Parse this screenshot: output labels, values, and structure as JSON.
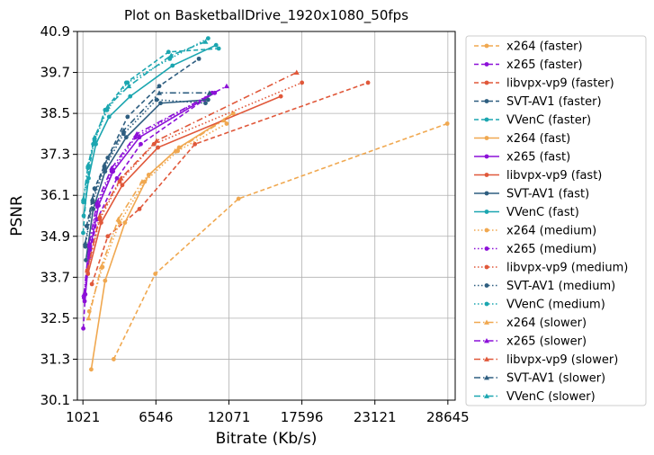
{
  "chart_data": {
    "type": "line",
    "title": "Plot on BasketballDrive_1920x1080_50fps",
    "xlabel": "Bitrate (Kb/s)",
    "ylabel": "PSNR",
    "xlim": [
      600,
      29200
    ],
    "ylim": [
      30.1,
      40.9
    ],
    "xticks": [
      1021,
      6546,
      12071,
      17596,
      23121,
      28645
    ],
    "xtick_labels": [
      "1021",
      "6546",
      "12071",
      "17596",
      "23121",
      "28645"
    ],
    "yticks": [
      30.1,
      31.3,
      32.5,
      33.7,
      34.9,
      36.1,
      37.3,
      38.5,
      39.7,
      40.9
    ],
    "ytick_labels": [
      "30.1",
      "31.3",
      "32.5",
      "33.7",
      "34.9",
      "36.1",
      "37.3",
      "38.5",
      "39.7",
      "40.9"
    ],
    "grid": true,
    "legend_position": "outside-right",
    "series": [
      {
        "name": "x264 (faster)",
        "color": "#f0a850",
        "dash": "dashed",
        "marker": "circle",
        "points": [
          [
            3350,
            31.3
          ],
          [
            6500,
            33.8
          ],
          [
            12800,
            36.0
          ],
          [
            28600,
            38.2
          ]
        ]
      },
      {
        "name": "x265 (faster)",
        "color": "#8c10d8",
        "dash": "dashed",
        "marker": "circle",
        "points": [
          [
            1050,
            32.2
          ],
          [
            1200,
            33.2
          ],
          [
            1500,
            34.3
          ],
          [
            2100,
            35.4
          ],
          [
            3600,
            36.6
          ],
          [
            5400,
            37.6
          ],
          [
            10200,
            38.9
          ]
        ]
      },
      {
        "name": "libvpx-vp9 (faster)",
        "color": "#e0583a",
        "dash": "dashed",
        "marker": "circle",
        "points": [
          [
            1700,
            33.5
          ],
          [
            2900,
            34.9
          ],
          [
            5300,
            35.7
          ],
          [
            9500,
            37.6
          ],
          [
            22600,
            39.4
          ]
        ]
      },
      {
        "name": "SVT-AV1 (faster)",
        "color": "#2e5e80",
        "dash": "dashed",
        "marker": "circle",
        "points": [
          [
            1300,
            35.2
          ],
          [
            1900,
            36.3
          ],
          [
            2900,
            37.2
          ],
          [
            4400,
            38.4
          ],
          [
            6800,
            39.3
          ],
          [
            9800,
            40.1
          ]
        ]
      },
      {
        "name": "VVenC (faster)",
        "color": "#1ba6b0",
        "dash": "dashed",
        "marker": "circle",
        "points": [
          [
            1040,
            35.0
          ],
          [
            1350,
            36.5
          ],
          [
            1800,
            37.6
          ],
          [
            2700,
            38.6
          ],
          [
            4300,
            39.4
          ],
          [
            7500,
            40.3
          ],
          [
            11300,
            40.4
          ]
        ]
      },
      {
        "name": "x264 (fast)",
        "color": "#f0a850",
        "dash": "solid",
        "marker": "circle",
        "points": [
          [
            1650,
            31.0
          ],
          [
            2700,
            33.6
          ],
          [
            4200,
            35.3
          ],
          [
            6000,
            36.7
          ],
          [
            8300,
            37.5
          ],
          [
            12400,
            38.5
          ]
        ]
      },
      {
        "name": "x265 (fast)",
        "color": "#8c10d8",
        "dash": "solid",
        "marker": "circle",
        "points": [
          [
            1150,
            33.0
          ],
          [
            1550,
            34.5
          ],
          [
            2200,
            35.8
          ],
          [
            3300,
            36.8
          ],
          [
            5300,
            37.8
          ],
          [
            11000,
            39.1
          ]
        ]
      },
      {
        "name": "libvpx-vp9 (fast)",
        "color": "#e0583a",
        "dash": "solid",
        "marker": "circle",
        "points": [
          [
            1400,
            33.8
          ],
          [
            2400,
            35.3
          ],
          [
            4000,
            36.4
          ],
          [
            6700,
            37.5
          ],
          [
            16000,
            39.0
          ]
        ]
      },
      {
        "name": "SVT-AV1 (fast)",
        "color": "#2e5e80",
        "dash": "solid",
        "marker": "circle",
        "points": [
          [
            1250,
            34.2
          ],
          [
            1800,
            35.7
          ],
          [
            2700,
            36.8
          ],
          [
            4300,
            37.8
          ],
          [
            6900,
            38.8
          ],
          [
            10500,
            38.9
          ]
        ]
      },
      {
        "name": "VVenC (fast)",
        "color": "#1ba6b0",
        "dash": "solid",
        "marker": "circle",
        "points": [
          [
            1080,
            35.5
          ],
          [
            1450,
            36.6
          ],
          [
            2000,
            37.6
          ],
          [
            3000,
            38.4
          ],
          [
            4600,
            39.0
          ],
          [
            7800,
            39.9
          ],
          [
            11100,
            40.5
          ]
        ]
      },
      {
        "name": "x264 (medium)",
        "color": "#f0a850",
        "dash": "dotted",
        "marker": "circle",
        "points": [
          [
            1500,
            32.7
          ],
          [
            2500,
            34.0
          ],
          [
            3800,
            35.3
          ],
          [
            5700,
            36.5
          ],
          [
            8200,
            37.4
          ],
          [
            11900,
            38.2
          ]
        ]
      },
      {
        "name": "x265 (medium)",
        "color": "#8c10d8",
        "dash": "dotted",
        "marker": "circle",
        "points": [
          [
            1100,
            33.1
          ],
          [
            1500,
            34.6
          ],
          [
            2100,
            35.8
          ],
          [
            3200,
            36.8
          ],
          [
            5000,
            37.8
          ],
          [
            10800,
            39.1
          ]
        ]
      },
      {
        "name": "libvpx-vp9 (medium)",
        "color": "#e0583a",
        "dash": "dotted",
        "marker": "circle",
        "points": [
          [
            1350,
            33.9
          ],
          [
            2300,
            35.4
          ],
          [
            3800,
            36.5
          ],
          [
            6400,
            37.6
          ],
          [
            17600,
            39.4
          ]
        ]
      },
      {
        "name": "SVT-AV1 (medium)",
        "color": "#2e5e80",
        "dash": "dotted",
        "marker": "circle",
        "points": [
          [
            1200,
            34.6
          ],
          [
            1750,
            35.9
          ],
          [
            2650,
            36.9
          ],
          [
            4100,
            37.9
          ],
          [
            6600,
            38.9
          ],
          [
            10300,
            38.8
          ]
        ]
      },
      {
        "name": "VVenC (medium)",
        "color": "#1ba6b0",
        "dash": "dotted",
        "marker": "circle",
        "points": [
          [
            1050,
            35.9
          ],
          [
            1400,
            36.9
          ],
          [
            1900,
            37.7
          ],
          [
            2850,
            38.6
          ],
          [
            4400,
            39.4
          ],
          [
            7600,
            40.1
          ],
          [
            10500,
            40.7
          ]
        ]
      },
      {
        "name": "x264 (slower)",
        "color": "#f0a850",
        "dash": "dashdot",
        "marker": "triangle",
        "points": [
          [
            1450,
            32.5
          ],
          [
            2400,
            34.0
          ],
          [
            3700,
            35.4
          ],
          [
            5500,
            36.5
          ],
          [
            8000,
            37.4
          ],
          [
            11700,
            38.3
          ]
        ]
      },
      {
        "name": "x265 (slower)",
        "color": "#8c10d8",
        "dash": "dashdot",
        "marker": "triangle",
        "points": [
          [
            1100,
            33.2
          ],
          [
            1500,
            34.7
          ],
          [
            2100,
            35.9
          ],
          [
            3200,
            36.9
          ],
          [
            5100,
            37.9
          ],
          [
            11900,
            39.3
          ]
        ]
      },
      {
        "name": "libvpx-vp9 (slower)",
        "color": "#e0583a",
        "dash": "dashdot",
        "marker": "triangle",
        "points": [
          [
            1350,
            33.9
          ],
          [
            2300,
            35.5
          ],
          [
            3900,
            36.6
          ],
          [
            6600,
            37.7
          ],
          [
            17200,
            39.7
          ]
        ]
      },
      {
        "name": "SVT-AV1 (slower)",
        "color": "#2e5e80",
        "dash": "dashdot",
        "marker": "triangle",
        "points": [
          [
            1200,
            34.7
          ],
          [
            1750,
            36.0
          ],
          [
            2650,
            37.0
          ],
          [
            4100,
            38.0
          ],
          [
            6800,
            39.1
          ],
          [
            10600,
            39.1
          ]
        ]
      },
      {
        "name": "VVenC (slower)",
        "color": "#1ba6b0",
        "dash": "dashdot",
        "marker": "triangle",
        "points": [
          [
            1060,
            36.0
          ],
          [
            1420,
            37.0
          ],
          [
            1900,
            37.8
          ],
          [
            2900,
            38.7
          ],
          [
            4500,
            39.3
          ],
          [
            7700,
            40.2
          ],
          [
            10300,
            40.6
          ]
        ]
      }
    ]
  }
}
